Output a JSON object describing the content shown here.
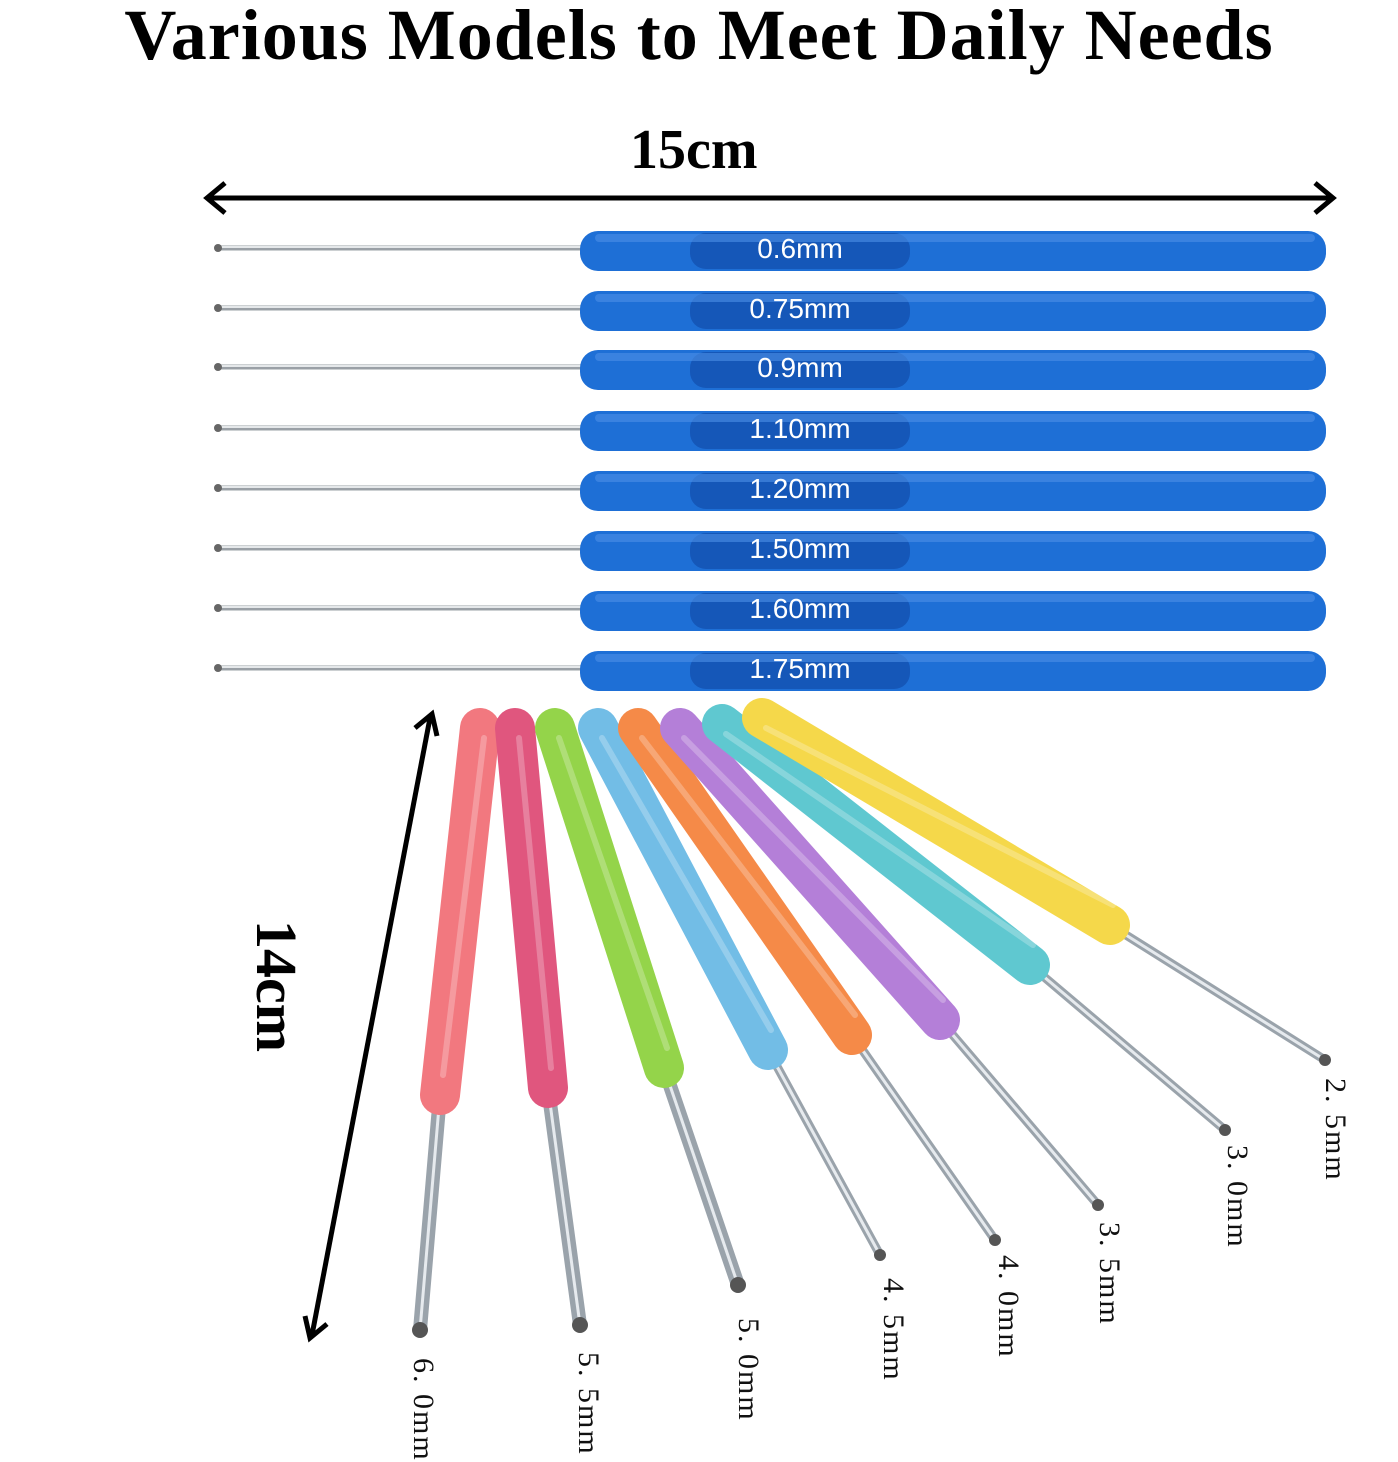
{
  "title": "Various Models to Meet Daily Needs",
  "length_top": "15cm",
  "length_side": "14cm",
  "top_hooks": [
    "0.6mm",
    "0.75mm",
    "0.9mm",
    "1.10mm",
    "1.20mm",
    "1.50mm",
    "1.60mm",
    "1.75mm"
  ],
  "colored_hooks": [
    "6. 0mm",
    "5. 5mm",
    "5. 0mm",
    "4. 5mm",
    "4. 0mm",
    "3. 5mm",
    "3. 0mm",
    "2. 5mm"
  ],
  "colors": {
    "blue_handle": "#1e6fd6",
    "handle_colors": [
      "#f2787f",
      "#e0567e",
      "#94d44a",
      "#72bde6",
      "#f58a48",
      "#b47fd8",
      "#5fc8d0",
      "#f5d84a"
    ]
  }
}
